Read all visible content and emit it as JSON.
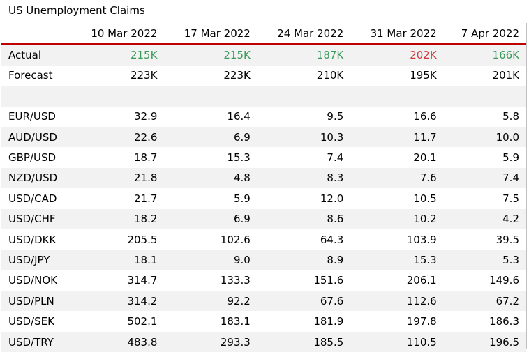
{
  "title": "US Unemployment Claims",
  "columns": [
    "10 Mar 2022",
    "17 Mar 2022",
    "24 Mar 2022",
    "31 Mar 2022",
    "7 Apr 2022"
  ],
  "colors": {
    "positive": "#3a9a5b",
    "negative": "#d0383c",
    "header_rule": "#c00000",
    "stripe": "#f2f2f2"
  },
  "actual": {
    "label": "Actual",
    "values": [
      "215K",
      "215K",
      "187K",
      "202K",
      "166K"
    ],
    "tone": [
      "green",
      "green",
      "green",
      "red",
      "green"
    ]
  },
  "forecast": {
    "label": "Forecast",
    "values": [
      "223K",
      "223K",
      "210K",
      "195K",
      "201K"
    ]
  },
  "pairs": [
    {
      "label": "EUR/USD",
      "values": [
        "32.9",
        "16.4",
        "9.5",
        "16.6",
        "5.8"
      ]
    },
    {
      "label": "AUD/USD",
      "values": [
        "22.6",
        "6.9",
        "10.3",
        "11.7",
        "10.0"
      ]
    },
    {
      "label": "GBP/USD",
      "values": [
        "18.7",
        "15.3",
        "7.4",
        "20.1",
        "5.9"
      ]
    },
    {
      "label": "NZD/USD",
      "values": [
        "21.8",
        "4.8",
        "8.3",
        "7.6",
        "7.4"
      ]
    },
    {
      "label": "USD/CAD",
      "values": [
        "21.7",
        "5.9",
        "12.0",
        "10.5",
        "7.5"
      ]
    },
    {
      "label": "USD/CHF",
      "values": [
        "18.2",
        "6.9",
        "8.6",
        "10.2",
        "4.2"
      ]
    },
    {
      "label": "USD/DKK",
      "values": [
        "205.5",
        "102.6",
        "64.3",
        "103.9",
        "39.5"
      ]
    },
    {
      "label": "USD/JPY",
      "values": [
        "18.1",
        "9.0",
        "8.9",
        "15.3",
        "5.3"
      ]
    },
    {
      "label": "USD/NOK",
      "values": [
        "314.7",
        "133.3",
        "151.6",
        "206.1",
        "149.6"
      ]
    },
    {
      "label": "USD/PLN",
      "values": [
        "314.2",
        "92.2",
        "67.6",
        "112.6",
        "67.2"
      ]
    },
    {
      "label": "USD/SEK",
      "values": [
        "502.1",
        "183.1",
        "181.9",
        "197.8",
        "186.3"
      ]
    },
    {
      "label": "USD/TRY",
      "values": [
        "483.8",
        "293.3",
        "185.5",
        "110.5",
        "196.5"
      ]
    }
  ]
}
